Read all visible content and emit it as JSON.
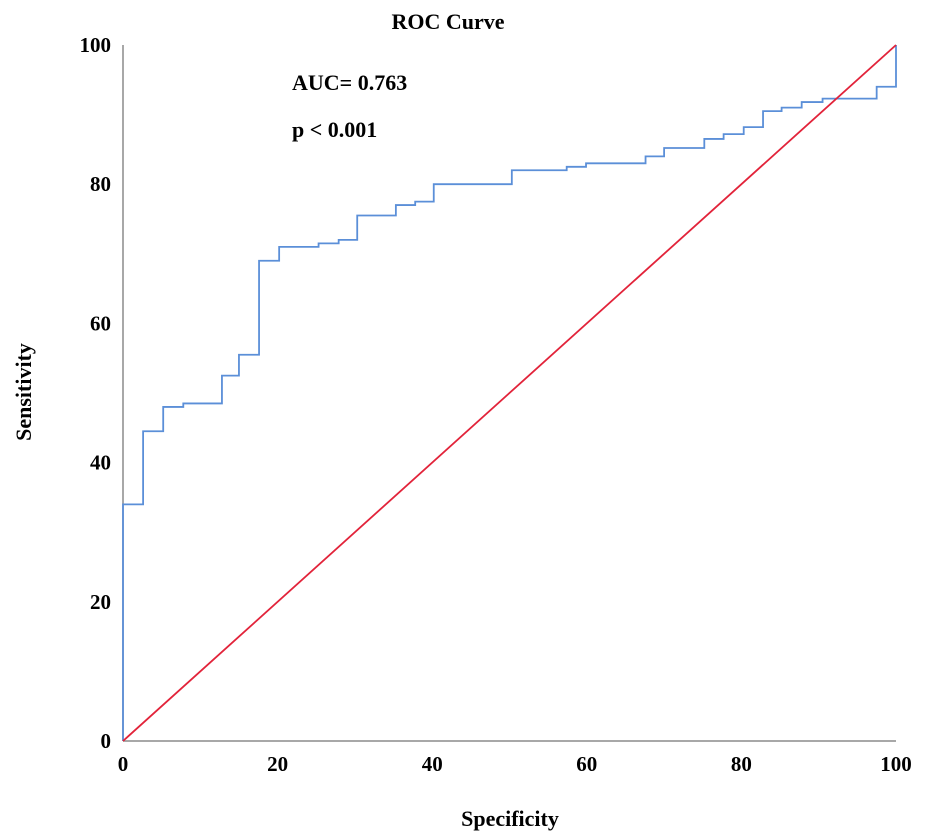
{
  "chart_data": {
    "type": "line",
    "title": "ROC Curve",
    "xlabel": "Specificity",
    "ylabel": "Sensitivity",
    "xlim": [
      0,
      100
    ],
    "ylim": [
      0,
      100
    ],
    "xticks": [
      "0",
      "20",
      "40",
      "60",
      "80",
      "100"
    ],
    "yticks": [
      "0",
      "20",
      "40",
      "60",
      "80",
      "100"
    ],
    "grid": false,
    "legend": "none",
    "annotations": [
      "AUC= 0.763",
      "p < 0.001"
    ],
    "series": [
      {
        "color": "#5b8fd8",
        "points": [
          [
            0,
            0
          ],
          [
            0,
            34
          ],
          [
            2.6,
            34
          ],
          [
            2.6,
            44.5
          ],
          [
            5.2,
            44.5
          ],
          [
            5.2,
            48
          ],
          [
            7.8,
            48
          ],
          [
            7.8,
            48.5
          ],
          [
            12.8,
            48.5
          ],
          [
            12.8,
            52.5
          ],
          [
            15,
            52.5
          ],
          [
            15,
            55.5
          ],
          [
            17.6,
            55.5
          ],
          [
            17.6,
            69
          ],
          [
            20.2,
            69
          ],
          [
            20.2,
            71
          ],
          [
            25.3,
            71
          ],
          [
            25.3,
            71.5
          ],
          [
            27.9,
            71.5
          ],
          [
            27.9,
            72
          ],
          [
            30.3,
            72
          ],
          [
            30.3,
            75.5
          ],
          [
            35.3,
            75.5
          ],
          [
            35.3,
            77
          ],
          [
            37.8,
            77
          ],
          [
            37.8,
            77.5
          ],
          [
            40.2,
            77.5
          ],
          [
            40.2,
            80
          ],
          [
            50.3,
            80
          ],
          [
            50.3,
            82
          ],
          [
            57.4,
            82
          ],
          [
            57.4,
            82.5
          ],
          [
            59.9,
            82.5
          ],
          [
            59.9,
            83
          ],
          [
            67.6,
            83
          ],
          [
            67.6,
            84
          ],
          [
            70,
            84
          ],
          [
            70,
            85.2
          ],
          [
            75.2,
            85.2
          ],
          [
            75.2,
            86.5
          ],
          [
            77.7,
            86.5
          ],
          [
            77.7,
            87.2
          ],
          [
            80.3,
            87.2
          ],
          [
            80.3,
            88.2
          ],
          [
            82.8,
            88.2
          ],
          [
            82.8,
            90.5
          ],
          [
            85.2,
            90.5
          ],
          [
            85.2,
            91
          ],
          [
            87.8,
            91
          ],
          [
            87.8,
            91.8
          ],
          [
            90.5,
            91.8
          ],
          [
            90.5,
            92.3
          ],
          [
            97.5,
            92.3
          ],
          [
            97.5,
            94
          ],
          [
            100,
            94
          ],
          [
            100,
            100
          ]
        ]
      },
      {
        "color": "#e2233a",
        "points": [
          [
            0,
            0
          ],
          [
            100,
            100
          ]
        ]
      }
    ]
  }
}
